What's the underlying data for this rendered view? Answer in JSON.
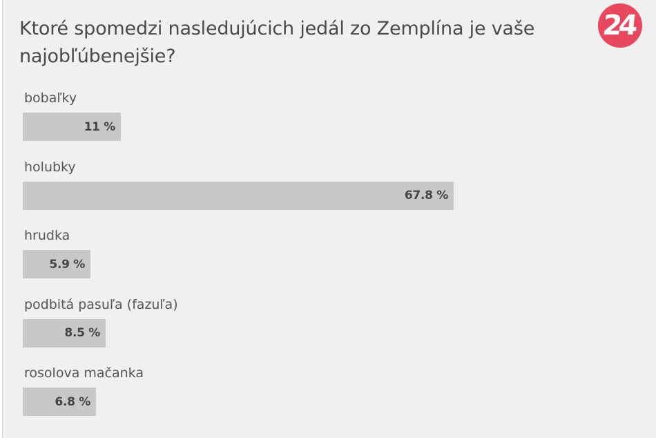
{
  "poll": {
    "question": "Ktoré spomedzi nasledujúcich jedál zo Zemplína je vaše najobľúbenejšie?",
    "logo_text": "24",
    "logo_color": "#e8475d",
    "bar_color": "#c8c8c8",
    "background_color": "#f0f0f0",
    "options": [
      {
        "label": "bobaľky",
        "value": 11,
        "value_text": "11 %"
      },
      {
        "label": "holubky",
        "value": 67.8,
        "value_text": "67.8 %"
      },
      {
        "label": "hrudka",
        "value": 5.9,
        "value_text": "5.9 %"
      },
      {
        "label": "podbitá pasuľa (fazuľa)",
        "value": 8.5,
        "value_text": "8.5 %"
      },
      {
        "label": "rosolova mačanka",
        "value": 6.8,
        "value_text": "6.8 %"
      }
    ]
  },
  "chart_data": {
    "type": "bar",
    "orientation": "horizontal",
    "title": "Ktoré spomedzi nasledujúcich jedál zo Zemplína je vaše najobľúbenejšie?",
    "categories": [
      "bobaľky",
      "holubky",
      "hrudka",
      "podbitá pasuľa (fazuľa)",
      "rosolova mačanka"
    ],
    "values": [
      11,
      67.8,
      5.9,
      8.5,
      6.8
    ],
    "unit": "%",
    "xlabel": "",
    "ylabel": "",
    "grid": false,
    "legend": "none",
    "data_labels": true
  }
}
